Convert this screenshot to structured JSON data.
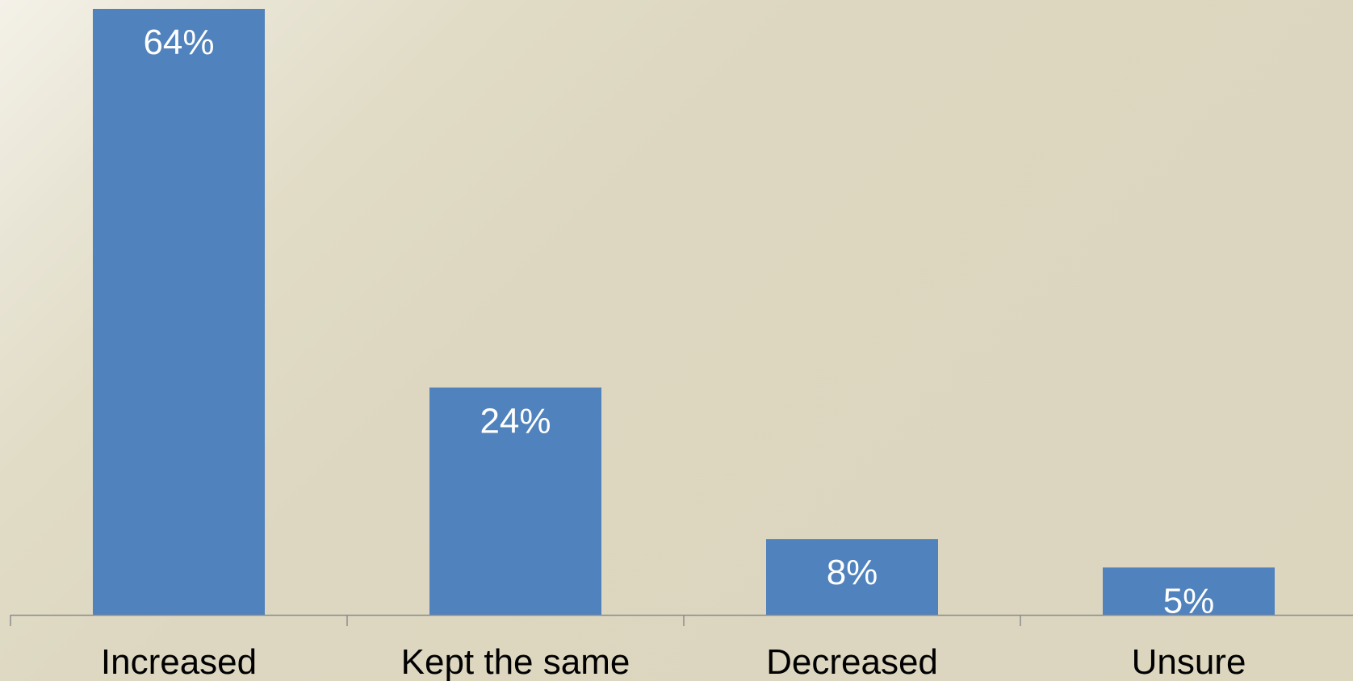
{
  "chart_data": {
    "type": "bar",
    "categories": [
      "Increased",
      "Kept the same",
      "Decreased",
      "Unsure"
    ],
    "values": [
      64,
      24,
      8,
      5
    ],
    "data_labels": [
      "64%",
      "24%",
      "8%",
      "5%"
    ],
    "title": "",
    "xlabel": "",
    "ylabel": "",
    "ylim": [
      0,
      64
    ],
    "grid": false,
    "legend": "none",
    "colors": {
      "bar": "#5082bd",
      "axis": "#8c8c8c",
      "data_label": "#ffffff",
      "category_label": "#000000"
    }
  }
}
